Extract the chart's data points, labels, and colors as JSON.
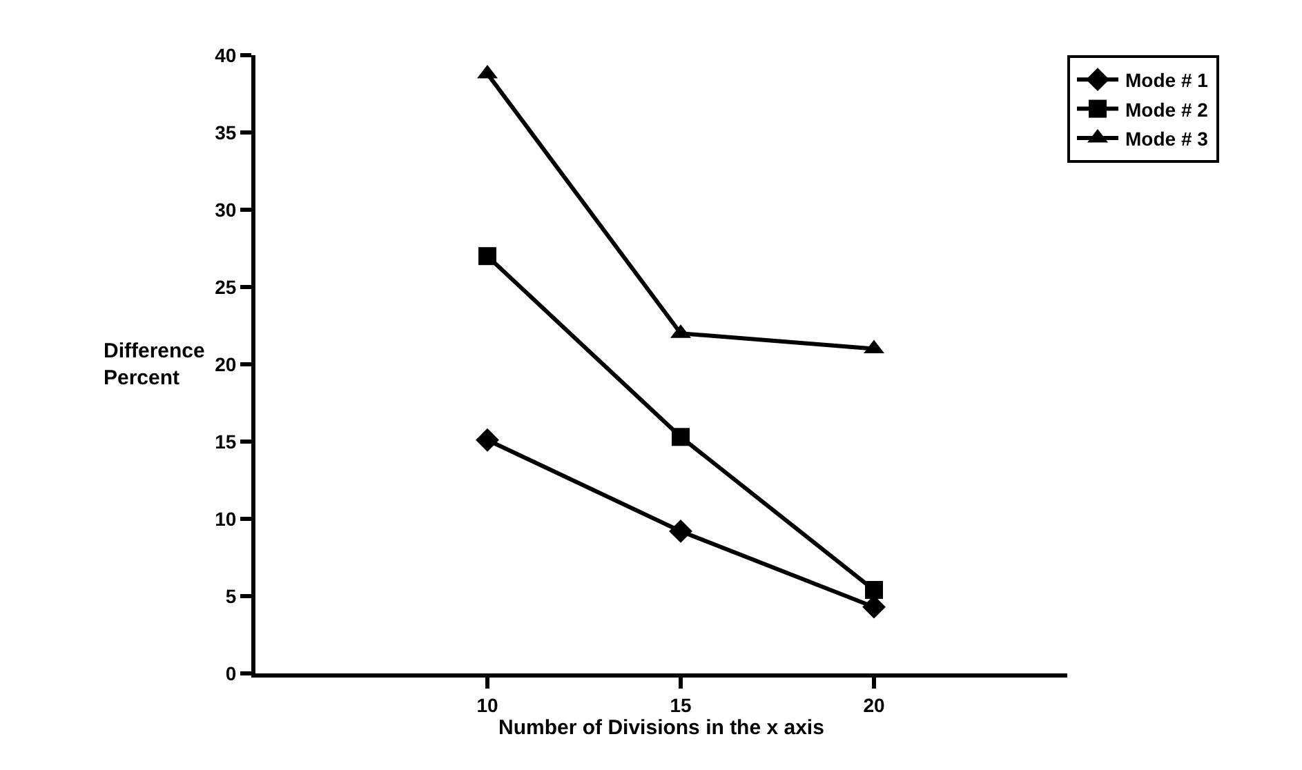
{
  "chart_data": {
    "type": "line",
    "xlabel": "Number of Divisions in the x axis",
    "ylabel": "Difference\nPercent",
    "x": [
      10,
      15,
      20
    ],
    "xlim": [
      4,
      25
    ],
    "xticks": [
      10,
      15,
      20
    ],
    "ylim": [
      0,
      40
    ],
    "yticks": [
      0,
      5,
      10,
      15,
      20,
      25,
      30,
      35,
      40
    ],
    "legend": "top right",
    "series": [
      {
        "name": "Mode # 1",
        "color": "#000000",
        "marker": "diamond",
        "values": [
          15.1,
          9.2,
          4.3
        ]
      },
      {
        "name": "Mode # 2",
        "color": "#000000",
        "marker": "square",
        "values": [
          27.0,
          15.3,
          5.4
        ]
      },
      {
        "name": "Mode # 3",
        "color": "#000000",
        "marker": "triangle",
        "values": [
          38.8,
          22.0,
          21.0
        ]
      }
    ]
  }
}
